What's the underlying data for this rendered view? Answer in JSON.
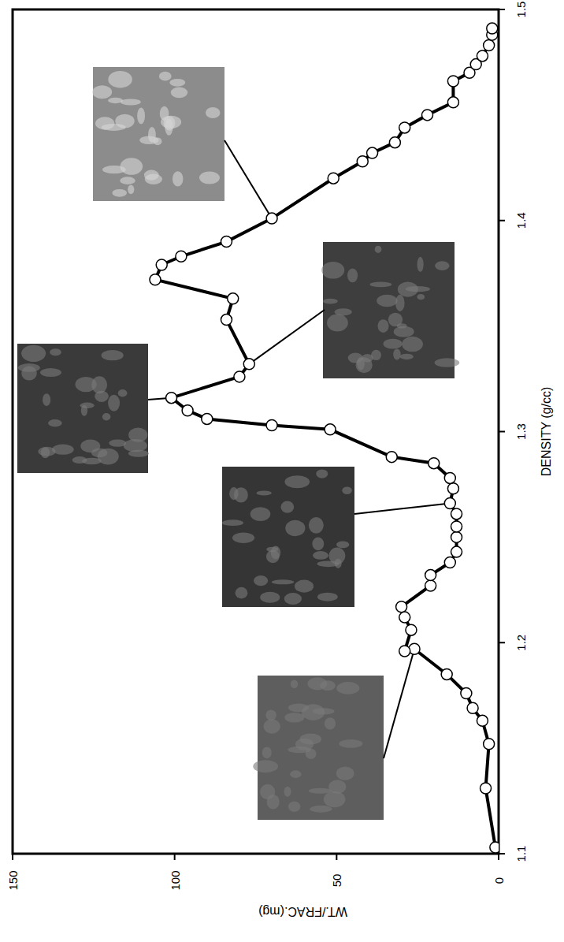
{
  "chart_data": {
    "type": "line",
    "xlabel": "DENSITY (g/cc)",
    "ylabel": "WT./FRAC.(mg)",
    "x": [
      1.103,
      1.131,
      1.152,
      1.163,
      1.169,
      1.176,
      1.185,
      1.197,
      1.196,
      1.206,
      1.212,
      1.217,
      1.227,
      1.232,
      1.238,
      1.243,
      1.25,
      1.255,
      1.261,
      1.266,
      1.273,
      1.278,
      1.285,
      1.288,
      1.301,
      1.303,
      1.306,
      1.31,
      1.316,
      1.326,
      1.332,
      1.353,
      1.363,
      1.372,
      1.379,
      1.383,
      1.39,
      1.401,
      1.42,
      1.428,
      1.432,
      1.437,
      1.444,
      1.45,
      1.456,
      1.466,
      1.47,
      1.474,
      1.478,
      1.483,
      1.488,
      1.491
    ],
    "values": [
      1,
      4,
      3,
      5,
      8,
      10,
      16,
      26,
      29,
      27,
      29,
      30,
      21,
      21,
      15,
      13,
      13,
      13,
      13,
      15,
      14,
      15,
      20,
      33,
      52,
      70,
      90,
      96,
      101,
      80,
      77,
      84,
      82,
      106,
      104,
      98,
      84,
      70,
      51,
      42,
      39,
      32,
      29,
      22,
      14,
      14,
      9,
      7,
      5,
      3,
      2,
      2
    ],
    "xlim": [
      1.1,
      1.5
    ],
    "ylim": [
      0,
      150
    ],
    "xticks": [
      1.1,
      1.2,
      1.3,
      1.4,
      1.5
    ],
    "yticks": [
      0,
      50,
      100,
      150
    ],
    "color": "#000000",
    "marker": "circle",
    "grid": false
  }
}
